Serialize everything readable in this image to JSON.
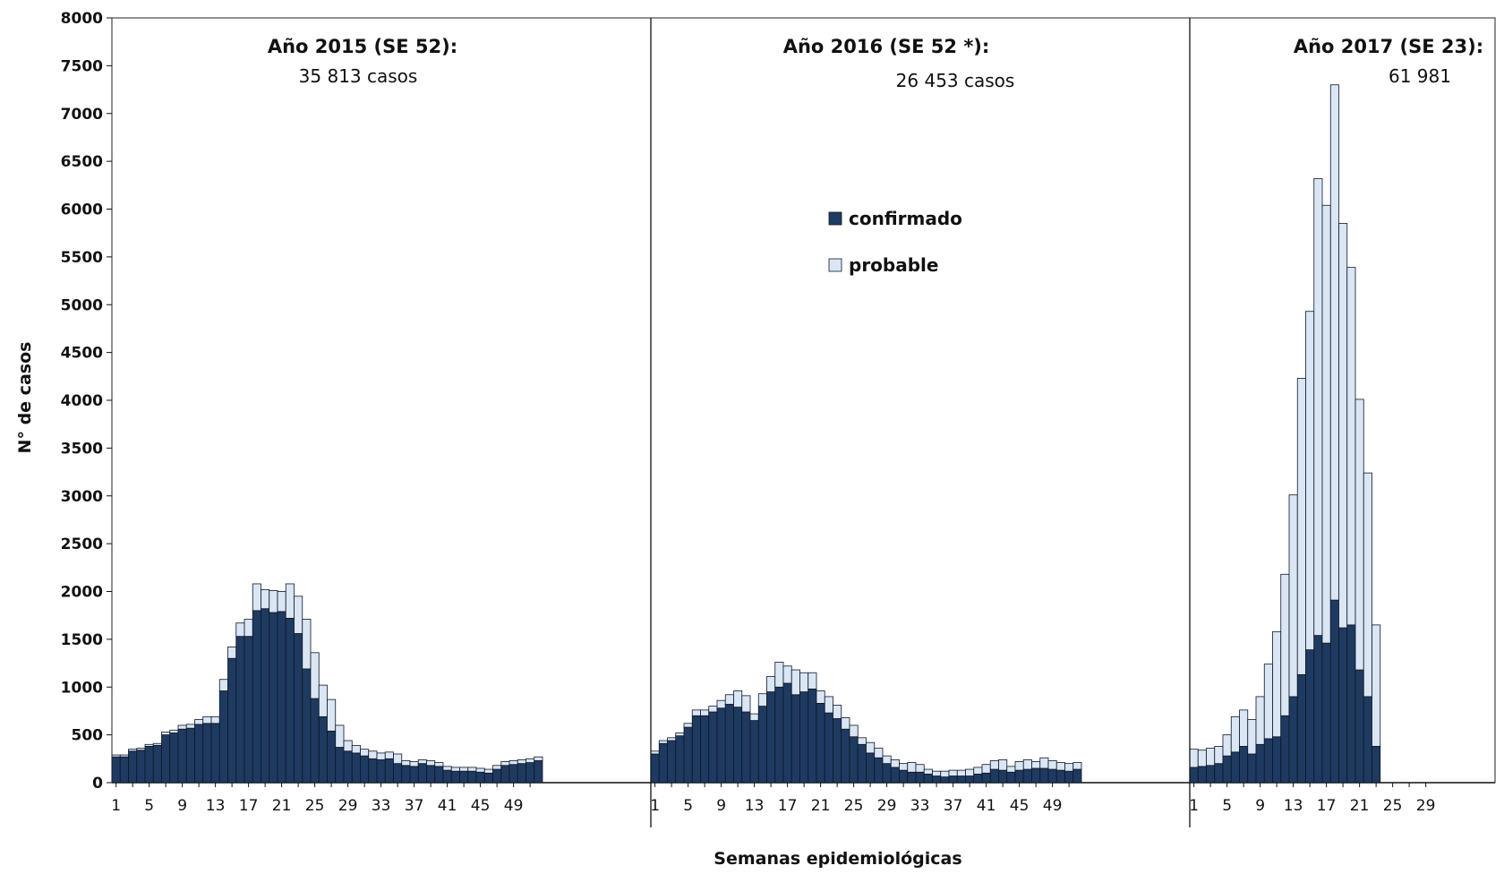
{
  "chart_data": {
    "type": "bar",
    "stacked": true,
    "xlabel": "Semanas epidemiológicas",
    "ylabel": "N° de casos",
    "ylim": [
      0,
      8000
    ],
    "yticks": [
      0,
      500,
      1000,
      1500,
      2000,
      2500,
      3000,
      3500,
      4000,
      4500,
      5000,
      5500,
      6000,
      6500,
      7000,
      7500,
      8000
    ],
    "legend": {
      "placement": "center",
      "entries": [
        "confirmado",
        "probable"
      ]
    },
    "colors": {
      "confirmado": "#1f3a60",
      "probable": "#dbe6f4",
      "outline": "#0d1626"
    },
    "periods": [
      {
        "title": "Año 2015 (SE 52):",
        "count_label": "35 813  casos",
        "weeks": 52,
        "xtick_labels": [
          "1",
          "5",
          "9",
          "13",
          "17",
          "21",
          "25",
          "29",
          "33",
          "37",
          "41",
          "45",
          "49"
        ],
        "series": [
          {
            "name": "confirmado",
            "values": [
              270,
              270,
              330,
              340,
              380,
              390,
              500,
              520,
              560,
              570,
              610,
              620,
              620,
              960,
              1300,
              1530,
              1530,
              1800,
              1820,
              1780,
              1790,
              1720,
              1560,
              1190,
              880,
              690,
              540,
              370,
              330,
              310,
              280,
              250,
              240,
              250,
              200,
              180,
              170,
              200,
              180,
              170,
              130,
              120,
              120,
              120,
              110,
              100,
              140,
              180,
              190,
              200,
              210,
              230
            ]
          },
          {
            "name": "probable",
            "values": [
              20,
              20,
              20,
              20,
              20,
              20,
              30,
              30,
              40,
              40,
              50,
              70,
              70,
              120,
              120,
              140,
              180,
              280,
              200,
              230,
              210,
              360,
              390,
              520,
              480,
              330,
              330,
              230,
              110,
              80,
              70,
              80,
              70,
              70,
              100,
              50,
              50,
              40,
              50,
              40,
              40,
              40,
              40,
              40,
              40,
              40,
              40,
              40,
              40,
              40,
              40,
              40
            ]
          }
        ]
      },
      {
        "title": "Año 2016 (SE 52 *):",
        "count_label": "26 453  casos",
        "weeks": 52,
        "xtick_labels": [
          "1",
          "5",
          "9",
          "13",
          "17",
          "21",
          "25",
          "29",
          "33",
          "37",
          "41",
          "45",
          "49"
        ],
        "series": [
          {
            "name": "confirmado",
            "values": [
              300,
              410,
              440,
              490,
              580,
              700,
              700,
              740,
              780,
              820,
              790,
              740,
              650,
              800,
              950,
              1000,
              1040,
              920,
              950,
              980,
              830,
              730,
              670,
              560,
              480,
              400,
              310,
              260,
              200,
              160,
              130,
              110,
              110,
              90,
              70,
              60,
              70,
              70,
              70,
              90,
              100,
              140,
              130,
              110,
              130,
              140,
              150,
              150,
              140,
              130,
              120,
              140
            ]
          },
          {
            "name": "probable",
            "values": [
              30,
              30,
              30,
              30,
              40,
              60,
              60,
              60,
              80,
              100,
              170,
              170,
              70,
              130,
              160,
              260,
              180,
              260,
              200,
              170,
              130,
              170,
              140,
              120,
              120,
              70,
              110,
              100,
              80,
              80,
              70,
              100,
              80,
              50,
              50,
              60,
              60,
              60,
              70,
              70,
              90,
              90,
              110,
              60,
              90,
              100,
              70,
              110,
              90,
              80,
              80,
              70
            ]
          }
        ]
      },
      {
        "title": "Año 2017 (SE 23):",
        "count_label": "61 981",
        "weeks": 29,
        "xtick_labels": [
          "1",
          "5",
          "9",
          "13",
          "17",
          "21",
          "25",
          "29"
        ],
        "series": [
          {
            "name": "confirmado",
            "values": [
              160,
              170,
              180,
              200,
              280,
              320,
              380,
              300,
              400,
              460,
              480,
              700,
              900,
              1130,
              1390,
              1540,
              1460,
              1910,
              1620,
              1650,
              1180,
              900,
              380
            ]
          },
          {
            "name": "probable",
            "values": [
              190,
              170,
              180,
              180,
              220,
              370,
              380,
              360,
              500,
              780,
              1100,
              1480,
              2110,
              3100,
              3540,
              4780,
              4580,
              5390,
              4230,
              3740,
              2830,
              2340,
              1270
            ]
          }
        ]
      }
    ]
  }
}
